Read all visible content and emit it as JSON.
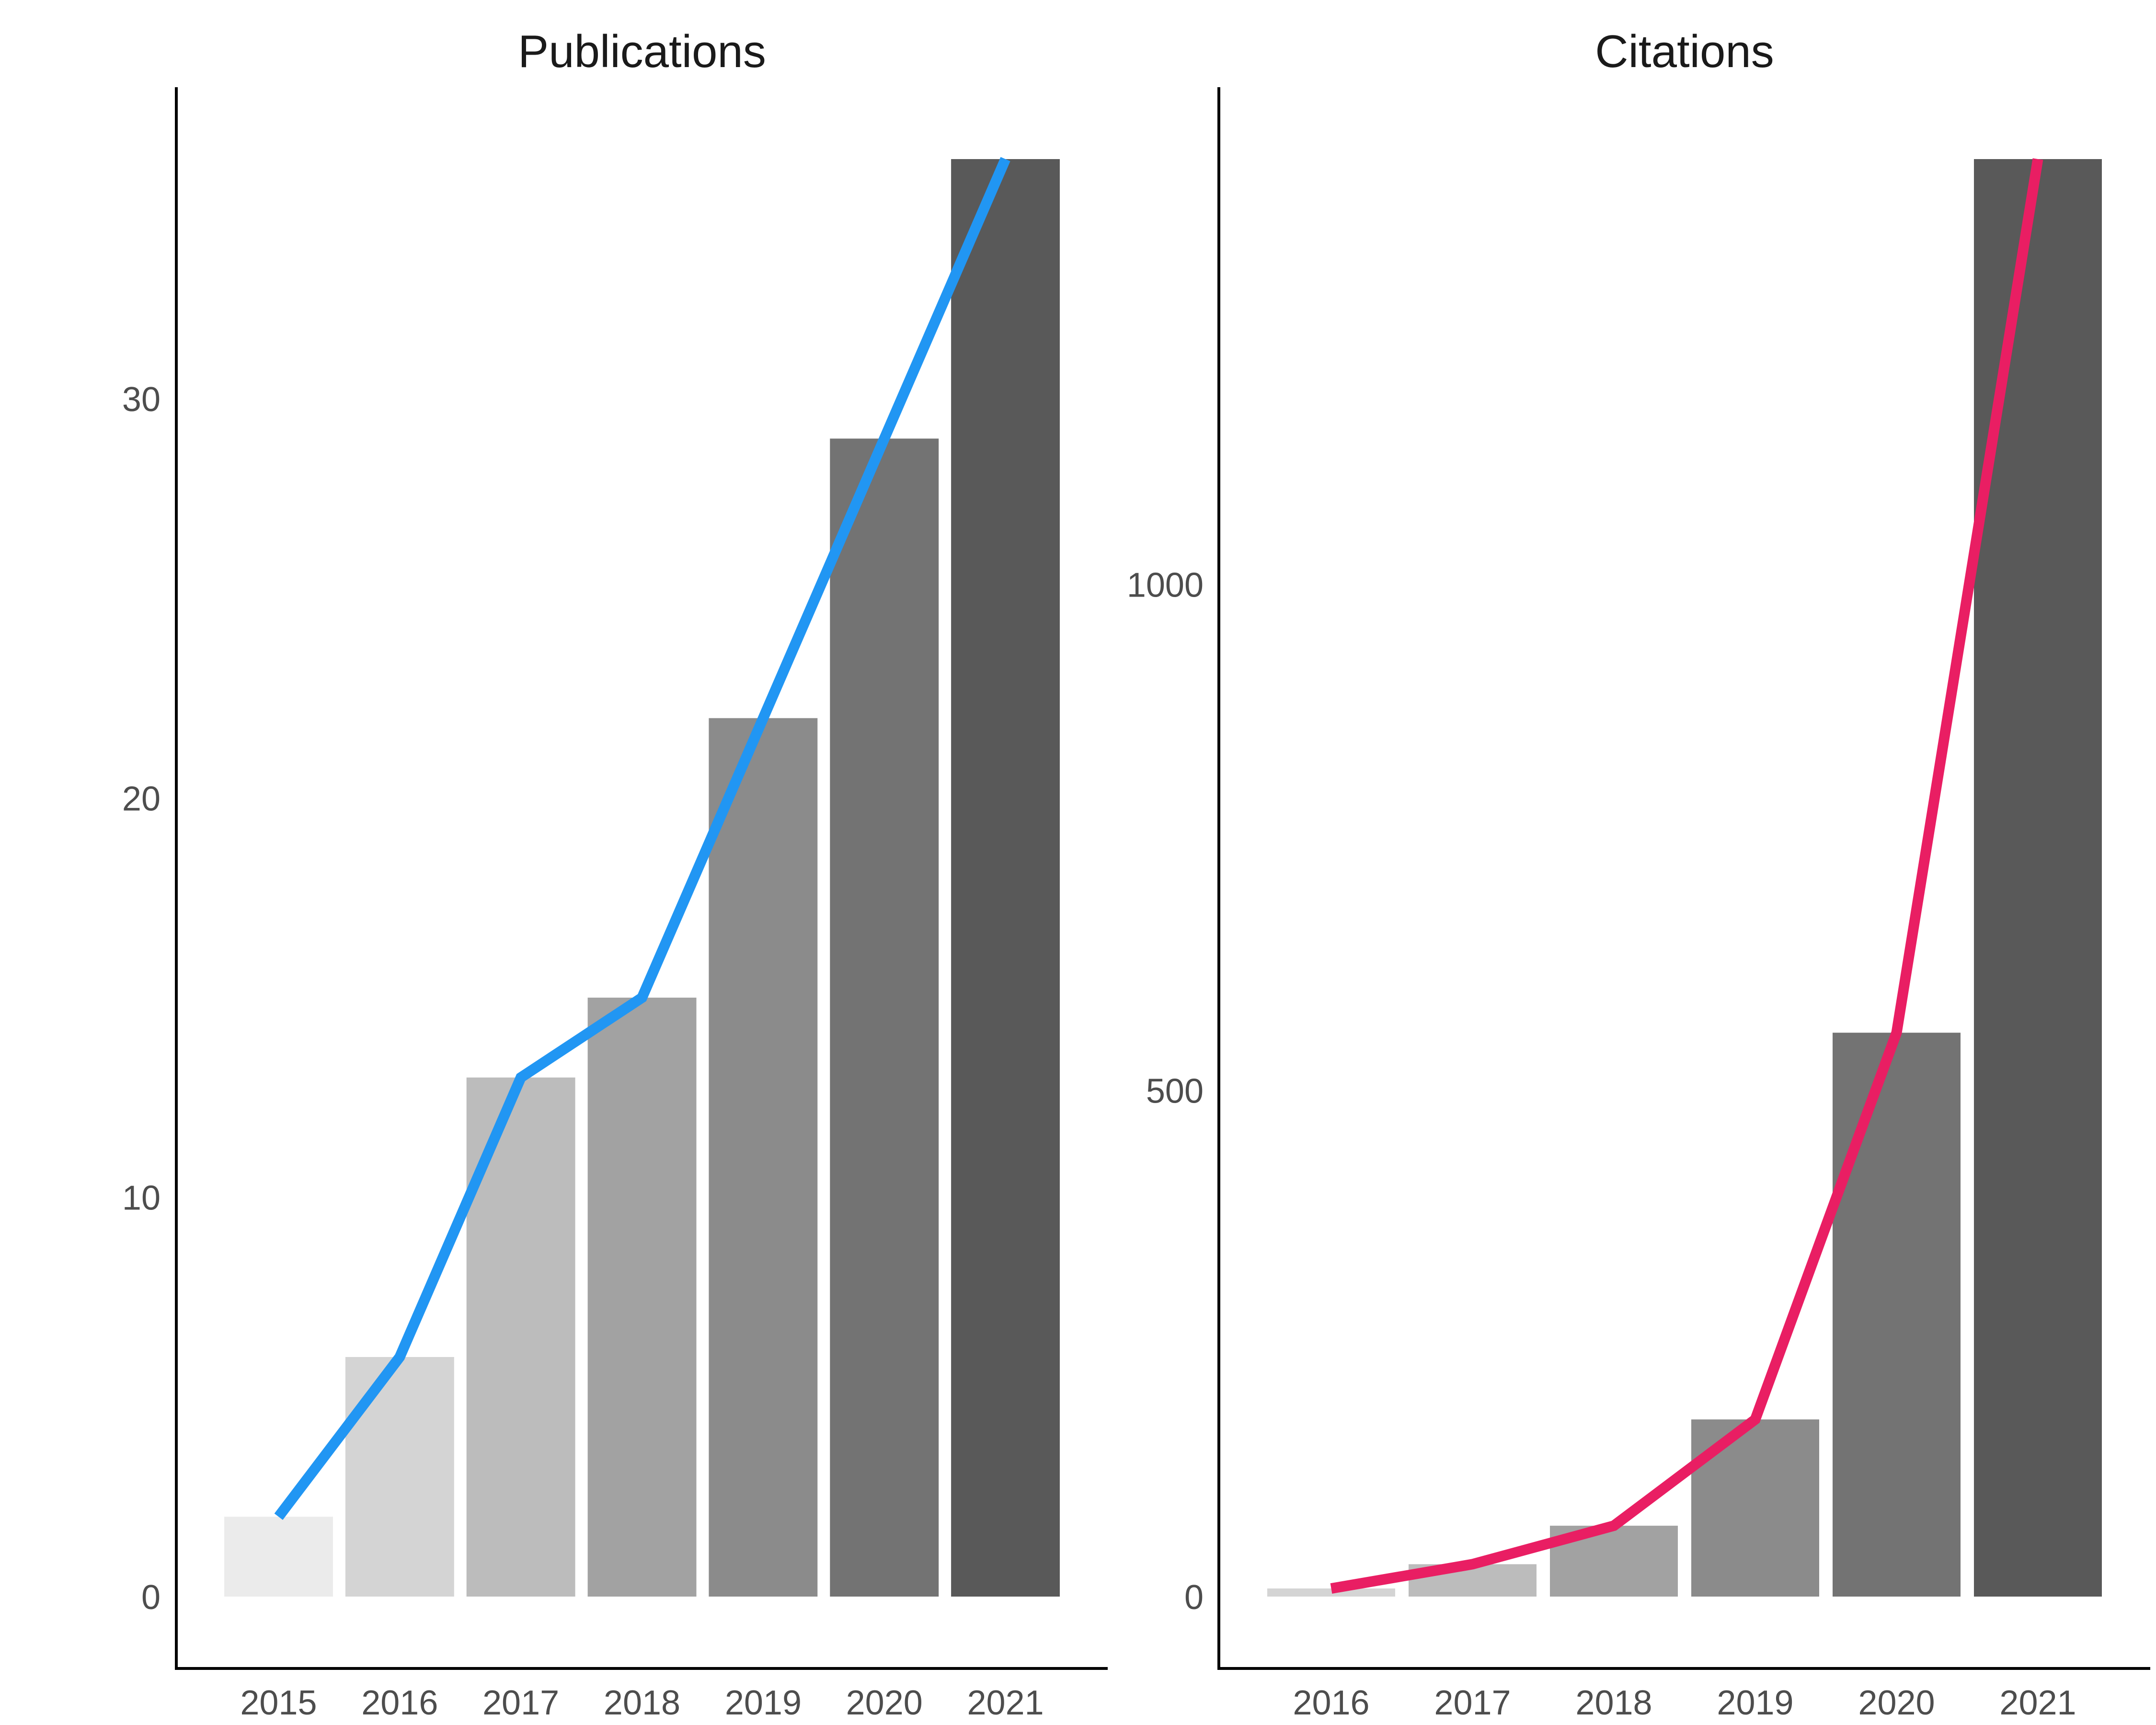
{
  "chart_data": [
    {
      "type": "bar",
      "title": "Publications",
      "xlabel": "",
      "ylabel": "",
      "categories": [
        "2015",
        "2016",
        "2017",
        "2018",
        "2019",
        "2020",
        "2021"
      ],
      "values": [
        2,
        6,
        13,
        15,
        22,
        29,
        36
      ],
      "yticks": [
        "0",
        "10",
        "20",
        "30"
      ],
      "ylim": [
        -1.8,
        37.8
      ],
      "bar_colors": [
        "#ebebeb",
        "#d4d4d4",
        "#bcbcbc",
        "#a2a2a2",
        "#8b8b8b",
        "#737373",
        "#595959"
      ],
      "line": {
        "values": [
          2,
          6,
          13,
          15,
          22,
          29,
          36
        ],
        "color": "#2196f3"
      },
      "grid": false,
      "legend": "none"
    },
    {
      "type": "bar",
      "title": "Citations",
      "xlabel": "",
      "ylabel": "",
      "categories": [
        "2016",
        "2017",
        "2018",
        "2019",
        "2020",
        "2021"
      ],
      "values": [
        8,
        32,
        70,
        175,
        557,
        1420
      ],
      "yticks": [
        "0",
        "500",
        "1000"
      ],
      "ylim": [
        -71,
        1491
      ],
      "bar_colors": [
        "#d4d4d4",
        "#bcbcbc",
        "#a2a2a2",
        "#8b8b8b",
        "#737373",
        "#595959"
      ],
      "line": {
        "values": [
          8,
          32,
          70,
          175,
          557,
          1420
        ],
        "color": "#e91e63"
      },
      "grid": false,
      "legend": "none"
    }
  ]
}
